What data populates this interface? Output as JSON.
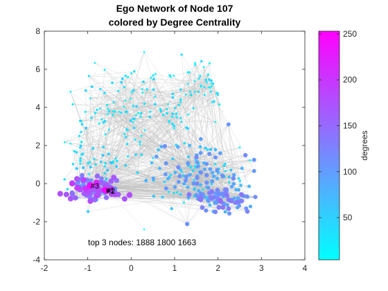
{
  "chart_data": {
    "type": "scatter",
    "title": "Ego Network of Node 107",
    "subtitle": "colored by Degree Centrality",
    "xlabel": "",
    "ylabel": "",
    "xlim": [
      -2,
      4
    ],
    "ylim": [
      -4,
      8
    ],
    "xticks": [
      -2,
      -1,
      0,
      1,
      2,
      3,
      4
    ],
    "yticks": [
      -4,
      -2,
      0,
      2,
      4,
      6,
      8
    ],
    "grid": false,
    "edge_color": "#bdbdbd",
    "colormap": [
      "#00ffff",
      "#ff00ff"
    ],
    "colorbar": {
      "label": "degrees",
      "range": [
        4,
        253
      ],
      "ticks": [
        50,
        100,
        150,
        200,
        250
      ]
    },
    "annotation": "top 3 nodes: 1888 1800 1663",
    "labeled_nodes": [
      {
        "label": "#3",
        "x": -0.95,
        "y": -0.1
      },
      {
        "label": "#1",
        "x": -0.6,
        "y": -0.35
      },
      {
        "label": "#2",
        "x": -0.58,
        "y": -0.38
      }
    ],
    "clusters": [
      {
        "cx": 0.0,
        "cy": 3.8,
        "sx": 0.65,
        "sy": 1.15,
        "n": 110,
        "deg": [
          10,
          45
        ]
      },
      {
        "cx": 1.5,
        "cy": 5.0,
        "sx": 0.4,
        "sy": 0.9,
        "n": 60,
        "deg": [
          10,
          45
        ]
      },
      {
        "cx": -0.9,
        "cy": 0.9,
        "sx": 0.35,
        "sy": 0.9,
        "n": 55,
        "deg": [
          20,
          60
        ]
      },
      {
        "cx": -0.9,
        "cy": -0.2,
        "sx": 0.28,
        "sy": 0.3,
        "n": 90,
        "deg": [
          90,
          200
        ]
      },
      {
        "cx": 1.5,
        "cy": 0.5,
        "sx": 0.55,
        "sy": 0.8,
        "n": 130,
        "deg": [
          20,
          120
        ]
      },
      {
        "cx": 2.1,
        "cy": -0.8,
        "sx": 0.4,
        "sy": 0.35,
        "n": 90,
        "deg": [
          70,
          140
        ]
      }
    ],
    "highlight_nodes": [
      {
        "x": -0.95,
        "y": -0.1,
        "deg": 245
      },
      {
        "x": -0.6,
        "y": -0.35,
        "deg": 253
      },
      {
        "x": -0.58,
        "y": -0.38,
        "deg": 230
      },
      {
        "x": -0.8,
        "y": 0.05,
        "deg": 215
      },
      {
        "x": -1.05,
        "y": -0.25,
        "deg": 205
      },
      {
        "x": -0.45,
        "y": -0.55,
        "deg": 180
      },
      {
        "x": -0.15,
        "y": -0.8,
        "deg": 170
      },
      {
        "x": -0.75,
        "y": -0.6,
        "deg": 160
      },
      {
        "x": 2.05,
        "y": -0.9,
        "deg": 150
      },
      {
        "x": 1.6,
        "y": -0.75,
        "deg": 140
      },
      {
        "x": 0.3,
        "y": 6.9,
        "deg": 8
      },
      {
        "x": 0.3,
        "y": -2.4,
        "deg": 6
      },
      {
        "x": 2.7,
        "y": -0.7,
        "deg": 40
      },
      {
        "x": -1.4,
        "y": 2.1,
        "deg": 12
      },
      {
        "x": 2.5,
        "y": 1.9,
        "deg": 10
      }
    ]
  }
}
